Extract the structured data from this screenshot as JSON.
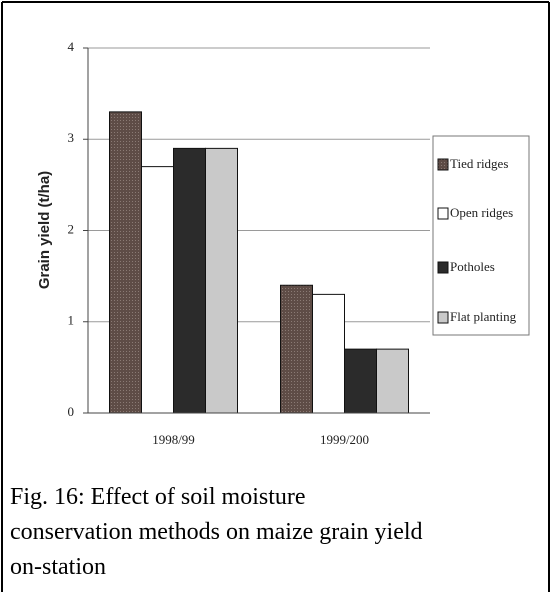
{
  "chart_data": {
    "type": "bar",
    "ylabel": "Grain yield (t/ha)",
    "categories": [
      "1998/99",
      "1999/200"
    ],
    "series": [
      {
        "name": "Tied ridges",
        "color": "#5e4c46",
        "values": [
          3.3,
          1.4
        ]
      },
      {
        "name": "Open ridges",
        "color": "#ffffff",
        "values": [
          2.7,
          1.3
        ]
      },
      {
        "name": "Potholes",
        "color": "#2b2b2b",
        "values": [
          2.9,
          0.7
        ]
      },
      {
        "name": "Flat planting",
        "color": "#c9c9c9",
        "values": [
          2.9,
          0.7
        ]
      }
    ],
    "ylim": [
      0,
      4
    ],
    "yticks": [
      0,
      1,
      2,
      3,
      4
    ],
    "grid": true,
    "legend": "right",
    "caption": "Fig. 16: Effect of soil moisture conservation methods on maize grain yield on-station"
  }
}
